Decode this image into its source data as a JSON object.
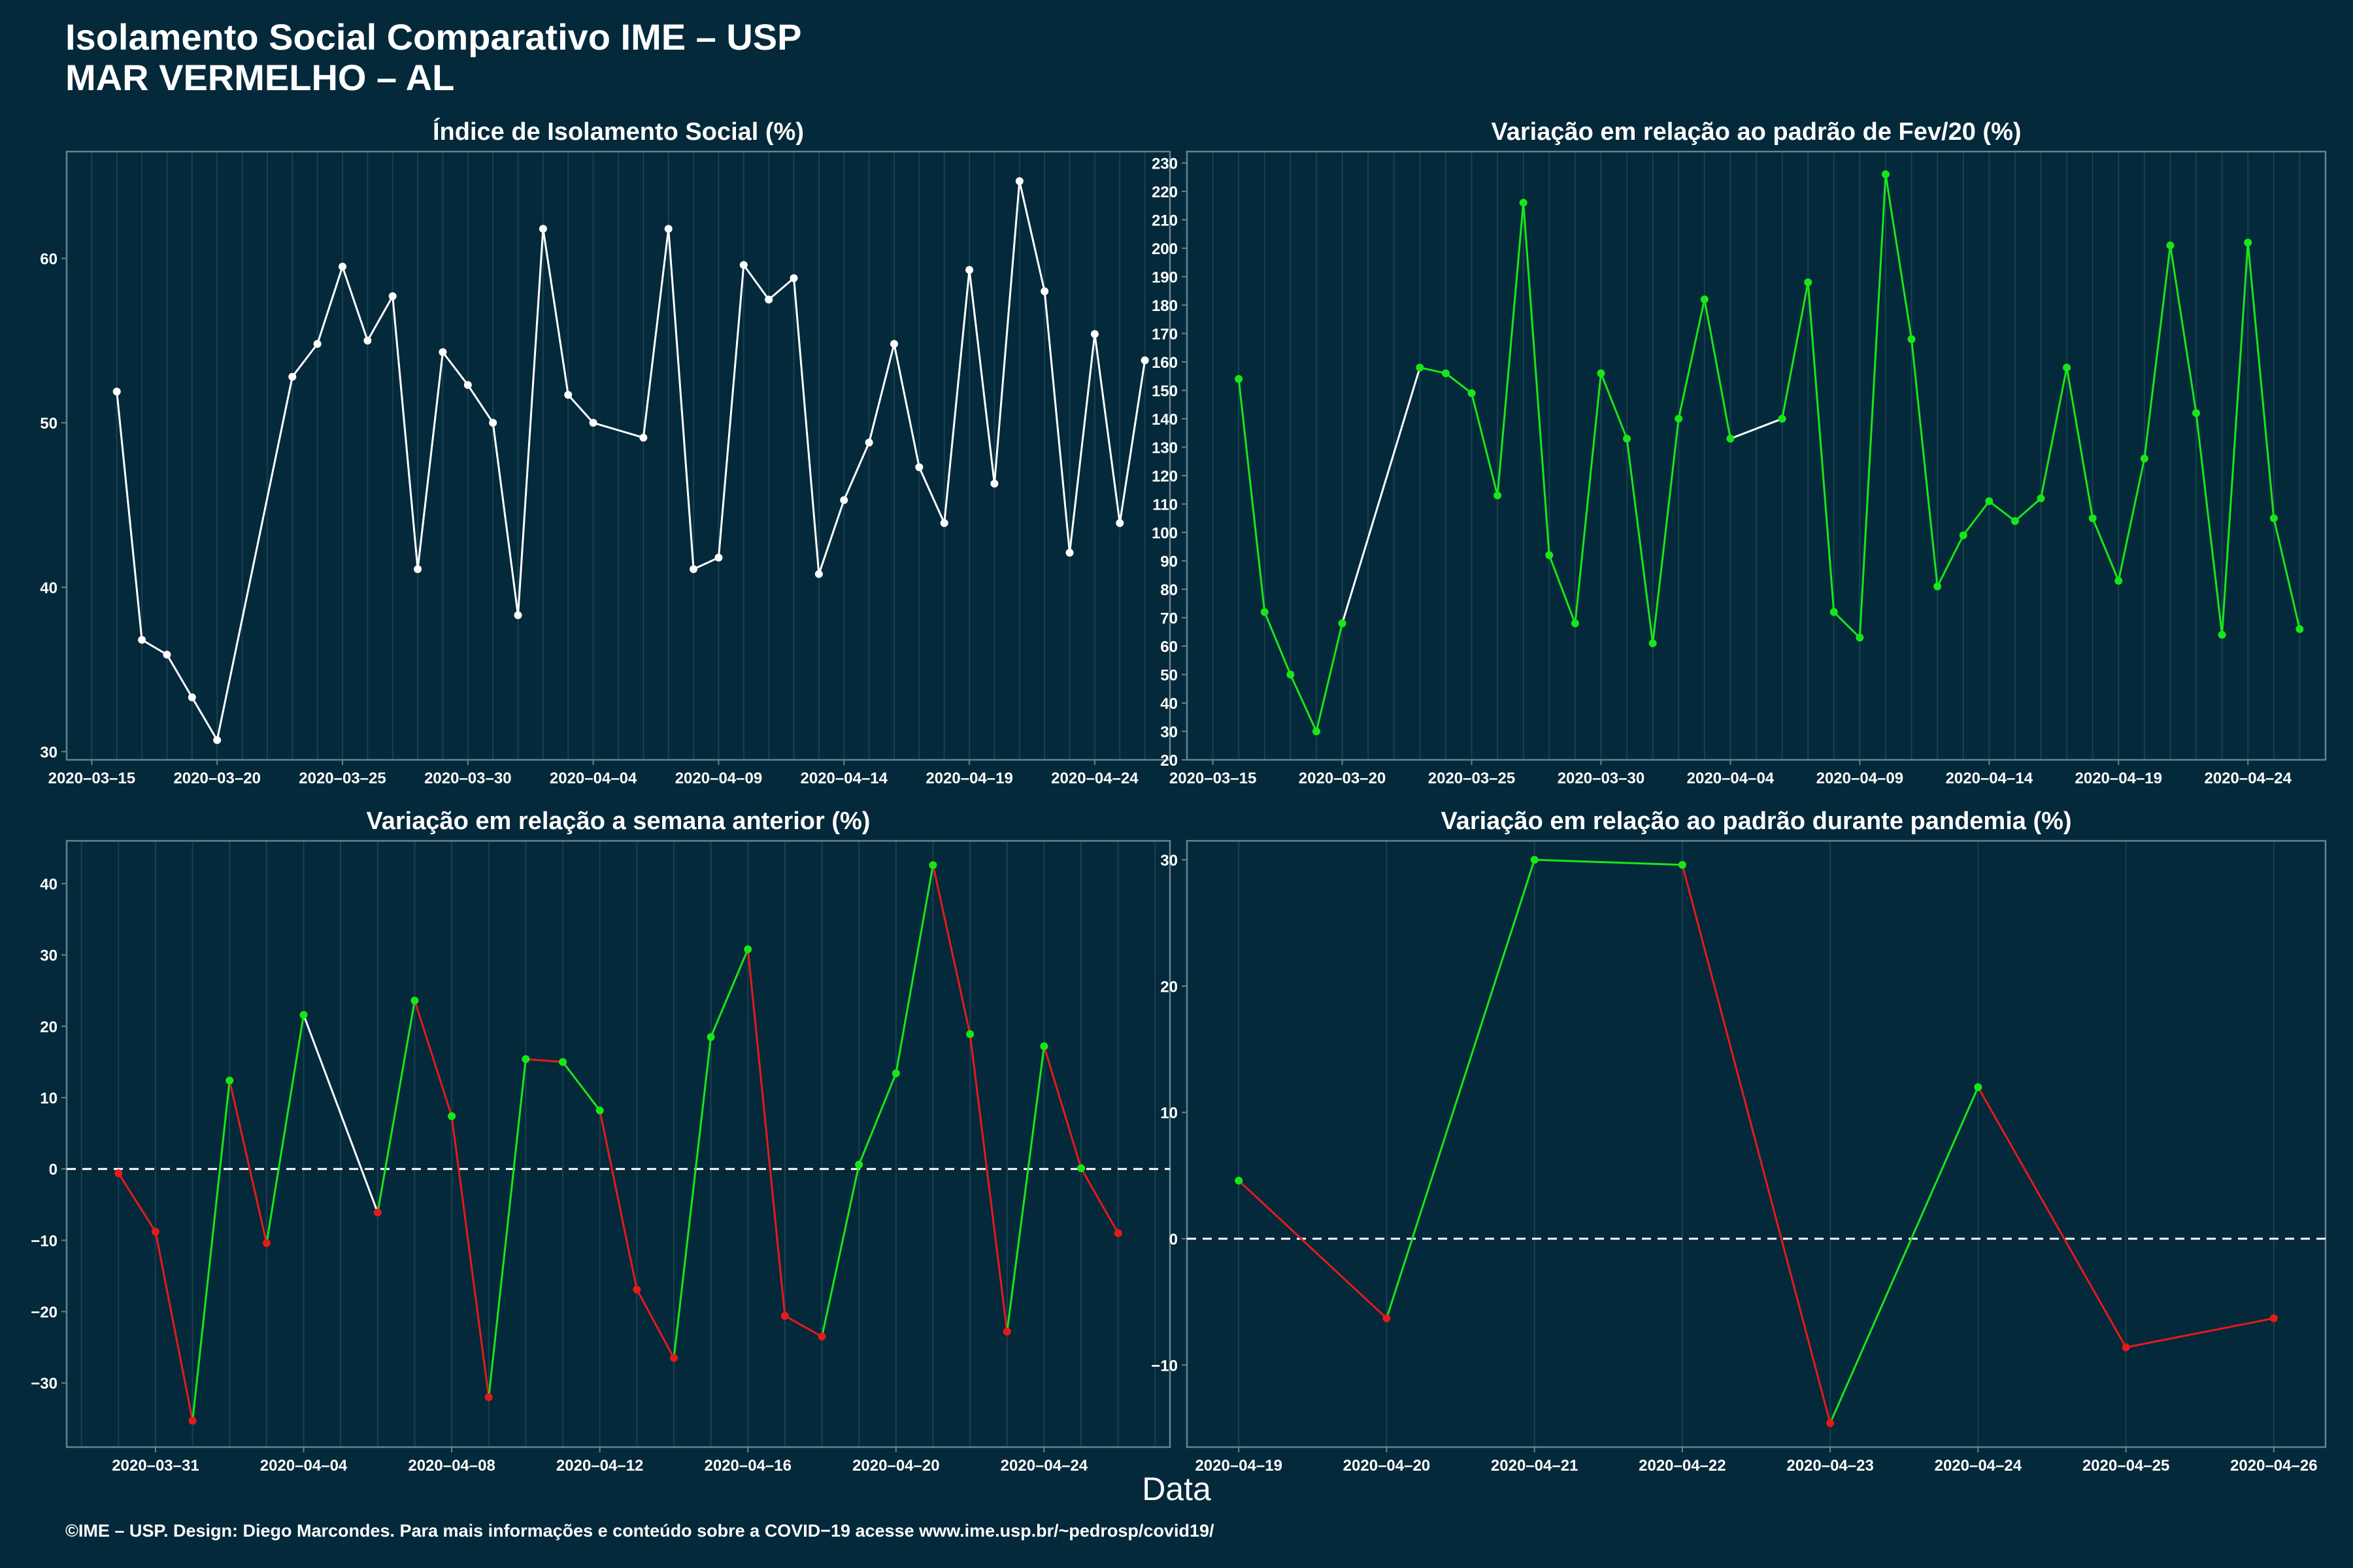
{
  "header": {
    "title_line1": "Isolamento Social Comparativo IME – USP",
    "title_line2": "MAR VERMELHO – AL"
  },
  "x_axis_label": "Data",
  "footer": "©IME – USP. Design: Diego Marcondes. Para mais informações e conteúdo sobre a COVID−19 acesse www.ime.usp.br/~pedrosp/covid19/",
  "colors": {
    "background": "#03293a",
    "white_line": "#ffffff",
    "positive": "#19e619",
    "negative": "#e61a1a",
    "frame": "#6a8290",
    "grid": "#1b4050"
  },
  "chart_data": [
    {
      "type": "line",
      "title": "Índice de Isolamento Social (%)",
      "xlabel": "",
      "ylabel": "",
      "x": [
        "2020-03-16",
        "2020-03-17",
        "2020-03-18",
        "2020-03-19",
        "2020-03-20",
        "2020-03-23",
        "2020-03-24",
        "2020-03-25",
        "2020-03-26",
        "2020-03-27",
        "2020-03-28",
        "2020-03-29",
        "2020-03-30",
        "2020-03-31",
        "2020-04-01",
        "2020-04-02",
        "2020-04-03",
        "2020-04-04",
        "2020-04-06",
        "2020-04-07",
        "2020-04-08",
        "2020-04-09",
        "2020-04-10",
        "2020-04-11",
        "2020-04-12",
        "2020-04-13",
        "2020-04-14",
        "2020-04-15",
        "2020-04-16",
        "2020-04-17",
        "2020-04-18",
        "2020-04-19",
        "2020-04-20",
        "2020-04-21",
        "2020-04-22",
        "2020-04-23",
        "2020-04-24",
        "2020-04-25",
        "2020-04-26"
      ],
      "values": [
        51.9,
        36.8,
        35.9,
        33.3,
        30.7,
        52.8,
        54.8,
        59.5,
        55.0,
        57.7,
        41.1,
        54.3,
        52.3,
        50.0,
        38.3,
        61.8,
        51.7,
        50.0,
        49.1,
        61.8,
        41.1,
        41.8,
        59.6,
        57.5,
        58.8,
        40.8,
        45.3,
        48.8,
        54.8,
        47.3,
        43.9,
        59.3,
        46.3,
        64.7,
        58.0,
        42.1,
        55.4,
        43.9,
        53.8
      ],
      "line_colors": [
        "white"
      ],
      "xticks": [
        "2020-03-15",
        "2020-03-20",
        "2020-03-25",
        "2020-03-30",
        "2020-04-04",
        "2020-04-09",
        "2020-04-14",
        "2020-04-19",
        "2020-04-24"
      ],
      "yticks": [
        30,
        40,
        50,
        60
      ],
      "xlim": [
        "2020-03-14",
        "2020-04-27"
      ],
      "ylim": [
        29.5,
        66.5
      ],
      "grid": true,
      "zero_line": false
    },
    {
      "type": "line",
      "title": "Variação em relação ao padrão de Fev/20 (%)",
      "xlabel": "",
      "ylabel": "",
      "x": [
        "2020-03-16",
        "2020-03-17",
        "2020-03-18",
        "2020-03-19",
        "2020-03-20",
        "2020-03-23",
        "2020-03-24",
        "2020-03-25",
        "2020-03-26",
        "2020-03-27",
        "2020-03-28",
        "2020-03-29",
        "2020-03-30",
        "2020-03-31",
        "2020-04-01",
        "2020-04-02",
        "2020-04-03",
        "2020-04-04",
        "2020-04-06",
        "2020-04-07",
        "2020-04-08",
        "2020-04-09",
        "2020-04-10",
        "2020-04-11",
        "2020-04-12",
        "2020-04-13",
        "2020-04-14",
        "2020-04-15",
        "2020-04-16",
        "2020-04-17",
        "2020-04-18",
        "2020-04-19",
        "2020-04-20",
        "2020-04-21",
        "2020-04-22",
        "2020-04-23",
        "2020-04-24",
        "2020-04-25",
        "2020-04-26"
      ],
      "values": [
        154,
        72,
        50,
        30,
        68,
        158,
        156,
        149,
        113,
        216,
        92,
        68,
        156,
        133,
        61,
        140,
        182,
        133,
        140,
        188,
        72,
        63,
        226,
        168,
        81,
        99,
        111,
        104,
        112,
        158,
        105,
        83,
        126,
        201,
        142,
        64,
        202,
        105,
        66
      ],
      "line_colors": [
        "positive",
        "positive",
        "positive",
        "positive",
        "white",
        "positive",
        "positive",
        "positive",
        "positive",
        "positive",
        "positive",
        "positive",
        "positive",
        "positive",
        "positive",
        "positive",
        "positive",
        "white",
        "positive",
        "positive",
        "positive",
        "positive",
        "positive",
        "positive",
        "positive",
        "positive",
        "positive",
        "positive",
        "positive",
        "positive",
        "positive",
        "positive",
        "positive",
        "positive",
        "positive",
        "positive",
        "positive",
        "positive"
      ],
      "xticks": [
        "2020-03-15",
        "2020-03-20",
        "2020-03-25",
        "2020-03-30",
        "2020-04-04",
        "2020-04-09",
        "2020-04-14",
        "2020-04-19",
        "2020-04-24"
      ],
      "yticks": [
        20,
        30,
        40,
        50,
        60,
        70,
        80,
        90,
        100,
        110,
        120,
        130,
        140,
        150,
        160,
        170,
        180,
        190,
        200,
        210,
        220,
        230
      ],
      "xlim": [
        "2020-03-14",
        "2020-04-27"
      ],
      "ylim": [
        20,
        234
      ],
      "grid": true,
      "zero_line": false
    },
    {
      "type": "line",
      "title": "Variação em relação a semana anterior (%)",
      "xlabel": "",
      "ylabel": "",
      "x": [
        "2020-03-30",
        "2020-03-31",
        "2020-04-01",
        "2020-04-02",
        "2020-04-03",
        "2020-04-04",
        "2020-04-06",
        "2020-04-07",
        "2020-04-08",
        "2020-04-09",
        "2020-04-10",
        "2020-04-11",
        "2020-04-12",
        "2020-04-13",
        "2020-04-14",
        "2020-04-15",
        "2020-04-16",
        "2020-04-17",
        "2020-04-18",
        "2020-04-19",
        "2020-04-20",
        "2020-04-21",
        "2020-04-22",
        "2020-04-23",
        "2020-04-24",
        "2020-04-25",
        "2020-04-26"
      ],
      "values": [
        -0.6,
        -8.8,
        -35.3,
        12.4,
        -10.4,
        21.6,
        -6.1,
        23.6,
        7.4,
        -32.0,
        15.4,
        15.0,
        8.2,
        -16.9,
        -26.5,
        18.5,
        30.8,
        -20.6,
        -23.5,
        0.6,
        13.4,
        42.6,
        18.9,
        -22.8,
        17.2,
        0.1,
        -9.0
      ],
      "line_colors": [
        "negative",
        "negative",
        "positive",
        "negative",
        "positive",
        "white",
        "positive",
        "negative",
        "negative",
        "positive",
        "negative",
        "positive",
        "negative",
        "negative",
        "positive",
        "positive",
        "negative",
        "negative",
        "positive",
        "positive",
        "positive",
        "negative",
        "negative",
        "positive",
        "negative",
        "negative"
      ],
      "point_colors": [
        "negative",
        "negative",
        "negative",
        "positive",
        "negative",
        "positive",
        "negative",
        "positive",
        "positive",
        "negative",
        "positive",
        "positive",
        "positive",
        "negative",
        "negative",
        "positive",
        "positive",
        "negative",
        "negative",
        "positive",
        "positive",
        "positive",
        "positive",
        "negative",
        "positive",
        "positive",
        "negative"
      ],
      "xticks": [
        "2020-03-31",
        "2020-04-04",
        "2020-04-08",
        "2020-04-12",
        "2020-04-16",
        "2020-04-20",
        "2020-04-24"
      ],
      "yticks": [
        -30,
        -20,
        -10,
        0,
        10,
        20,
        30,
        40
      ],
      "xlim": [
        "2020-03-28.6",
        "2020-04-27.4"
      ],
      "ylim": [
        -39,
        46
      ],
      "grid": true,
      "zero_line": true
    },
    {
      "type": "line",
      "title": "Variação em relação ao padrão durante pandemia (%)",
      "xlabel": "",
      "ylabel": "",
      "x": [
        "2020-04-19",
        "2020-04-20",
        "2020-04-21",
        "2020-04-22",
        "2020-04-23",
        "2020-04-24",
        "2020-04-25",
        "2020-04-26"
      ],
      "values": [
        4.6,
        -6.3,
        30.0,
        29.6,
        -14.6,
        12.0,
        -8.6,
        -6.3
      ],
      "line_colors": [
        "negative",
        "positive",
        "positive",
        "negative",
        "positive",
        "negative",
        "negative"
      ],
      "point_colors": [
        "positive",
        "negative",
        "positive",
        "positive",
        "negative",
        "positive",
        "negative",
        "negative"
      ],
      "xticks": [
        "2020-04-19",
        "2020-04-20",
        "2020-04-21",
        "2020-04-22",
        "2020-04-23",
        "2020-04-24",
        "2020-04-25",
        "2020-04-26"
      ],
      "yticks": [
        -10,
        0,
        10,
        20,
        30
      ],
      "xlim": [
        "2020-04-18.65",
        "2020-04-26.35"
      ],
      "ylim": [
        -16.5,
        31.5
      ],
      "grid": true,
      "zero_line": true
    }
  ]
}
